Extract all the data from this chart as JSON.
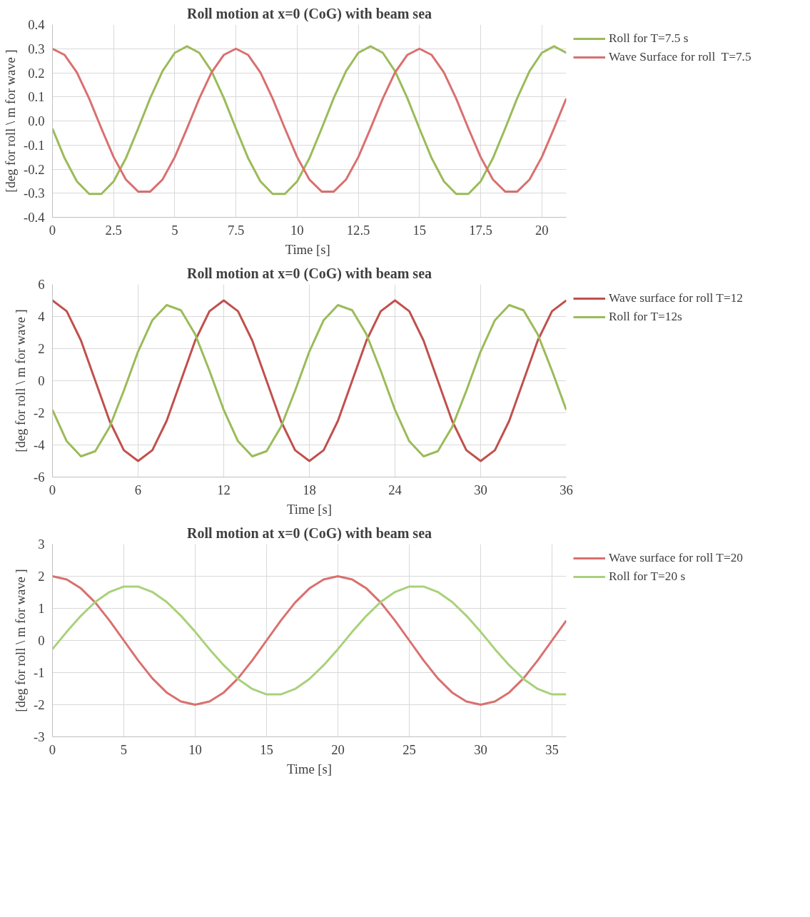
{
  "chart_data": [
    {
      "type": "line",
      "title": "Roll motion at x=0 (CoG) with beam sea",
      "xlabel": "Time  [s]",
      "ylabel": "[deg for roll \\ m for wave ]",
      "x": [
        0,
        0.5,
        1,
        1.5,
        2,
        2.5,
        3,
        3.5,
        4,
        4.5,
        5,
        5.5,
        6,
        6.5,
        7,
        7.5,
        8,
        8.5,
        9,
        9.5,
        10,
        10.5,
        11,
        11.5,
        12,
        12.5,
        13,
        13.5,
        14,
        14.5,
        15,
        15.5,
        16,
        16.5,
        17,
        17.5,
        18,
        18.5,
        19,
        19.5,
        20,
        20.5,
        21
      ],
      "series": [
        {
          "name": "Roll for T=7.5 s",
          "color": "#9bbb59",
          "values": [
            -0.032,
            -0.155,
            -0.251,
            -0.303,
            -0.303,
            -0.251,
            -0.155,
            -0.032,
            0.096,
            0.207,
            0.283,
            0.31,
            0.283,
            0.207,
            0.096,
            -0.032,
            -0.155,
            -0.251,
            -0.303,
            -0.303,
            -0.251,
            -0.155,
            -0.032,
            0.096,
            0.207,
            0.283,
            0.31,
            0.283,
            0.207,
            0.096,
            -0.032,
            -0.155,
            -0.251,
            -0.303,
            -0.303,
            -0.251,
            -0.155,
            -0.032,
            0.096,
            0.207,
            0.283,
            0.31,
            0.283
          ]
        },
        {
          "name": "Wave Surface for roll  T=7.5",
          "color": "#d9706f",
          "values": [
            0.3,
            0.274,
            0.201,
            0.093,
            -0.031,
            -0.15,
            -0.243,
            -0.293,
            -0.293,
            -0.243,
            -0.15,
            -0.031,
            0.093,
            0.201,
            0.274,
            0.3,
            0.274,
            0.201,
            0.093,
            -0.031,
            -0.15,
            -0.243,
            -0.293,
            -0.293,
            -0.243,
            -0.15,
            -0.031,
            0.093,
            0.201,
            0.274,
            0.3,
            0.274,
            0.201,
            0.093,
            -0.031,
            -0.15,
            -0.243,
            -0.293,
            -0.293,
            -0.243,
            -0.15,
            -0.031,
            0.093
          ]
        }
      ],
      "xlim": [
        0,
        21
      ],
      "ylim": [
        -0.4,
        0.4
      ],
      "xticks": [
        0,
        2.5,
        5,
        7.5,
        10,
        12.5,
        15,
        17.5,
        20
      ],
      "yticks": [
        -0.4,
        -0.3,
        -0.2,
        -0.1,
        {
          "value": 0,
          "label": "0.0"
        },
        0.1,
        0.2,
        0.3,
        0.4
      ],
      "grid": true,
      "legend": "top right"
    },
    {
      "type": "line",
      "title": "Roll motion at x=0 (CoG) with beam sea",
      "xlabel": "Time [s]",
      "ylabel": "[deg for roll \\ m for wave ]",
      "x": [
        0,
        1,
        2,
        3,
        4,
        5,
        6,
        7,
        8,
        9,
        10,
        11,
        12,
        13,
        14,
        15,
        16,
        17,
        18,
        19,
        20,
        21,
        22,
        23,
        24,
        25,
        26,
        27,
        28,
        29,
        30,
        31,
        32,
        33,
        34,
        35,
        36
      ],
      "series": [
        {
          "name": "Wave surface for roll T=12",
          "color": "#c0504d",
          "values": [
            5,
            4.33,
            2.5,
            0,
            -2.5,
            -4.33,
            -5,
            -4.33,
            -2.5,
            0,
            2.5,
            4.33,
            5,
            4.33,
            2.5,
            0,
            -2.5,
            -4.33,
            -5,
            -4.33,
            -2.5,
            0,
            2.5,
            4.33,
            5,
            4.33,
            2.5,
            0,
            -2.5,
            -4.33,
            -5,
            -4.33,
            -2.5,
            0,
            2.5,
            4.33,
            5
          ]
        },
        {
          "name": "Roll for T=12s",
          "color": "#9bbb59",
          "values": [
            -1.82,
            -3.77,
            -4.71,
            -4.39,
            -2.89,
            -0.62,
            1.82,
            3.77,
            4.71,
            4.39,
            2.89,
            0.62,
            -1.82,
            -3.77,
            -4.71,
            -4.39,
            -2.89,
            -0.62,
            1.82,
            3.77,
            4.71,
            4.39,
            2.89,
            0.62,
            -1.82,
            -3.77,
            -4.71,
            -4.39,
            -2.89,
            -0.62,
            1.82,
            3.77,
            4.71,
            4.39,
            2.89,
            0.62,
            -1.82
          ]
        }
      ],
      "xlim": [
        0,
        36
      ],
      "ylim": [
        -6,
        6
      ],
      "xticks": [
        0,
        6,
        12,
        18,
        24,
        30,
        36
      ],
      "yticks": [
        -6,
        -4,
        -2,
        0,
        2,
        4,
        6
      ],
      "grid": true,
      "legend": "top right"
    },
    {
      "type": "line",
      "title": "Roll motion at x=0 (CoG) with beam sea",
      "xlabel": "Time [s]",
      "ylabel": "[deg for roll \\ m for wave ]",
      "x": [
        0,
        1,
        2,
        3,
        4,
        5,
        6,
        7,
        8,
        9,
        10,
        11,
        12,
        13,
        14,
        15,
        16,
        17,
        18,
        19,
        20,
        21,
        22,
        23,
        24,
        25,
        26,
        27,
        28,
        29,
        30,
        31,
        32,
        33,
        34,
        35,
        36
      ],
      "series": [
        {
          "name": "Wave surface for roll T=20",
          "color": "#d9706f",
          "values": [
            2,
            1.9,
            1.62,
            1.18,
            0.62,
            0,
            -0.62,
            -1.18,
            -1.62,
            -1.9,
            -2,
            -1.9,
            -1.62,
            -1.18,
            -0.62,
            0,
            0.62,
            1.18,
            1.62,
            1.9,
            2,
            1.9,
            1.62,
            1.18,
            0.62,
            0,
            -0.62,
            -1.18,
            -1.62,
            -1.9,
            -2,
            -1.9,
            -1.62,
            -1.18,
            -0.62,
            0,
            0.62
          ]
        },
        {
          "name": "Roll for T=20 s",
          "color": "#a9d17a",
          "values": [
            -0.27,
            0.27,
            0.77,
            1.2,
            1.51,
            1.68,
            1.68,
            1.51,
            1.2,
            0.77,
            0.27,
            -0.27,
            -0.77,
            -1.2,
            -1.51,
            -1.68,
            -1.68,
            -1.51,
            -1.2,
            -0.77,
            -0.27,
            0.27,
            0.77,
            1.2,
            1.51,
            1.68,
            1.68,
            1.51,
            1.2,
            0.77,
            0.27,
            -0.27,
            -0.77,
            -1.2,
            -1.51,
            -1.68,
            -1.68
          ]
        }
      ],
      "xlim": [
        0,
        36
      ],
      "ylim": [
        -3,
        3
      ],
      "xticks": [
        0,
        5,
        10,
        15,
        20,
        25,
        30,
        35
      ],
      "yticks": [
        -3,
        -2,
        -1,
        0,
        1,
        2,
        3
      ],
      "grid": true,
      "legend": "top right"
    }
  ]
}
